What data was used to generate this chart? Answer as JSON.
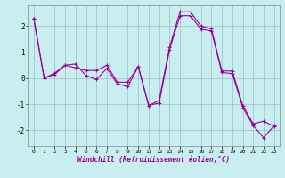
{
  "xlabel": "Windchill (Refroidissement éolien,°C)",
  "background_color": "#c8eef0",
  "line_color": "#990099",
  "grid_color": "#99bbcc",
  "x_hours": [
    0,
    1,
    2,
    3,
    4,
    5,
    6,
    7,
    8,
    9,
    10,
    11,
    12,
    13,
    14,
    15,
    16,
    17,
    18,
    19,
    20,
    21,
    22,
    23
  ],
  "series1": [
    2.3,
    0.0,
    0.2,
    0.5,
    0.4,
    0.3,
    0.3,
    0.5,
    -0.15,
    -0.15,
    0.45,
    -1.05,
    -0.85,
    1.2,
    2.55,
    2.55,
    2.0,
    1.9,
    0.28,
    0.28,
    -1.05,
    -1.75,
    -1.65,
    -1.85
  ],
  "series2": [
    2.3,
    0.0,
    0.15,
    0.5,
    0.55,
    0.1,
    -0.05,
    0.38,
    -0.22,
    -0.32,
    0.45,
    -1.05,
    -0.95,
    1.1,
    2.4,
    2.4,
    1.88,
    1.82,
    0.22,
    0.18,
    -1.12,
    -1.82,
    -2.28,
    -1.82
  ],
  "ylim": [
    -2.6,
    2.8
  ],
  "yticks": [
    -2,
    -1,
    0,
    1,
    2
  ],
  "xticks": [
    0,
    1,
    2,
    3,
    4,
    5,
    6,
    7,
    8,
    9,
    10,
    11,
    12,
    13,
    14,
    15,
    16,
    17,
    18,
    19,
    20,
    21,
    22,
    23
  ],
  "xlim": [
    -0.5,
    23.5
  ]
}
